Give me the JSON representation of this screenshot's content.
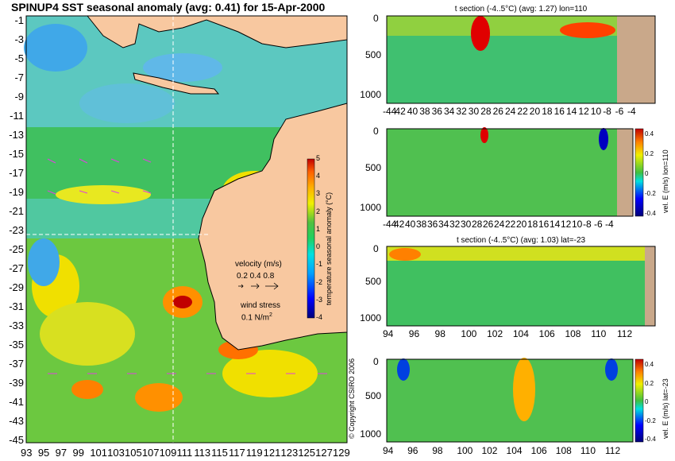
{
  "colors": {
    "land": "#f8c8a0",
    "ocean_land": "#c9a88a",
    "scale": [
      "#00007a",
      "#0000ff",
      "#00a0ff",
      "#00e0e0",
      "#20d060",
      "#50c040",
      "#f0f000",
      "#ffb000",
      "#ff6000",
      "#c00000"
    ]
  },
  "main": {
    "title": "SPINUP4 SST seasonal anomaly (avg: 0.41) for 15-Apr-2000",
    "y_ticks": [
      "-1",
      "-3",
      "-5",
      "-7",
      "-9",
      "-11",
      "-13",
      "-15",
      "-17",
      "-19",
      "-21",
      "-23",
      "-25",
      "-27",
      "-29",
      "-31",
      "-33",
      "-35",
      "-37",
      "-39",
      "-41",
      "-43",
      "-45"
    ],
    "x_ticks": [
      "93",
      "95",
      "97",
      "99",
      "101",
      "103",
      "105",
      "107",
      "109",
      "111",
      "113",
      "115",
      "117",
      "119",
      "121",
      "123",
      "125",
      "127",
      "129"
    ],
    "colorbar": {
      "label": "temperature seasonal anomaly (°C)",
      "ticks": [
        "5",
        "4",
        "3",
        "2",
        "1",
        "0",
        "-1",
        "-2",
        "-3",
        "-4"
      ]
    },
    "velocity_label": "velocity (m/s)",
    "velocity_ticks": "0.2 0.4 0.8",
    "wind_label": "wind stress",
    "wind_value": "0.1 N/m",
    "wind_sup": "2"
  },
  "panels": [
    {
      "title": "t section (-4..5°C) (avg: 1.27) lon=110",
      "y_ticks": [
        "500",
        "1000"
      ],
      "x_ticks": [
        "-44",
        "42",
        "40",
        "38",
        "36",
        "34",
        "32",
        "30",
        "28",
        "26",
        "24",
        "22",
        "20",
        "18",
        "16",
        "14",
        "12",
        "10",
        "-8",
        "-6",
        "-4"
      ]
    },
    {
      "title": "",
      "y_ticks": [
        "500",
        "1000"
      ],
      "x_ticks": [
        "-44",
        "42",
        "40",
        "38",
        "36",
        "34",
        "32",
        "30",
        "28",
        "26",
        "24",
        "22",
        "20",
        "18",
        "16",
        "14",
        "12",
        "10",
        "-8",
        "-6",
        "-4"
      ],
      "colorbar_label": "vel. E (m/s) lon=110",
      "colorbar_ticks": [
        "0.4",
        "0.2",
        "0",
        "-0.2",
        "-0.4"
      ]
    },
    {
      "title": "t section (-4..5°C) (avg: 1.03) lat=-23",
      "y_ticks": [
        "500",
        "1000"
      ],
      "x_ticks": [
        "94",
        "96",
        "98",
        "100",
        "102",
        "104",
        "106",
        "108",
        "110",
        "112"
      ]
    },
    {
      "title": "",
      "y_ticks": [
        "500",
        "1000"
      ],
      "x_ticks": [
        "94",
        "96",
        "98",
        "100",
        "102",
        "104",
        "106",
        "108",
        "110",
        "112"
      ],
      "colorbar_label": "vel. E (m/s) lat=-23",
      "colorbar_ticks": [
        "0.4",
        "0.2",
        "0",
        "-0.2",
        "-0.4"
      ]
    }
  ],
  "copyright": "© Copyright CSIRO 2006"
}
